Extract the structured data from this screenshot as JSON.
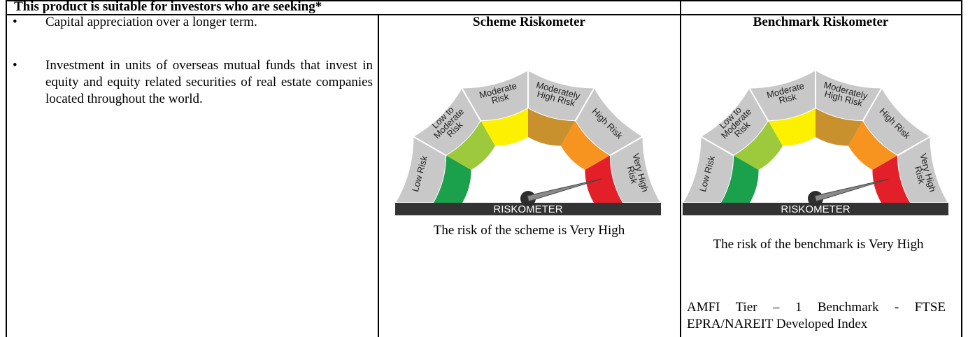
{
  "header": {
    "title": "This product is suitable for investors who are seeking*"
  },
  "investor_needs": [
    "Capital appreciation over a longer term.",
    "Investment in units of overseas mutual funds that invest in equity and equity related securities of real estate companies located throughout the world."
  ],
  "scheme": {
    "heading": "Scheme Riskometer",
    "risk_text": "The risk of the scheme is Very High"
  },
  "benchmark": {
    "heading": "Benchmark Riskometer",
    "risk_text": "The risk of the benchmark is Very High",
    "benchmark_name": "AMFI Tier – 1 Benchmark - FTSE EPRA/NAREIT Developed Index"
  },
  "riskometer": {
    "bar_label": "RISKOMETER",
    "levels": [
      [
        "Low Risk"
      ],
      [
        "Low to",
        "Moderate",
        "Risk"
      ],
      [
        "Moderate",
        "Risk"
      ],
      [
        "Moderately",
        "High Risk"
      ],
      [
        "High Risk"
      ],
      [
        "Very High",
        "Risk"
      ]
    ]
  }
}
